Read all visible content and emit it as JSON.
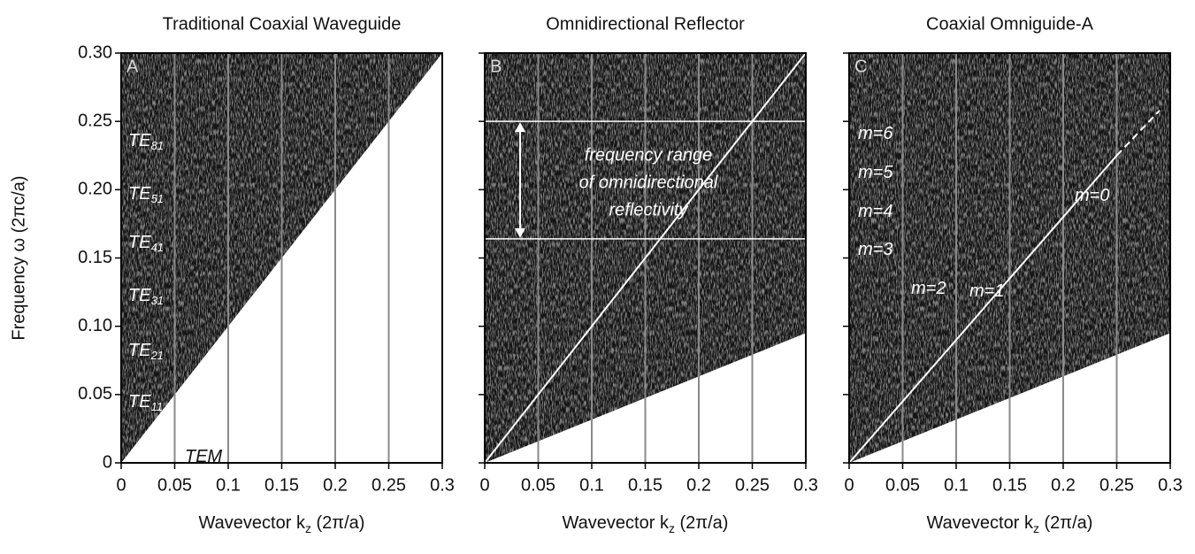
{
  "chart_data": [
    {
      "type": "band",
      "panel": "A",
      "title": "Traditional Coaxial Waveguide",
      "ylabel": "Frequency ω  (2πc/a)",
      "xlabel": {
        "text": "Wavevector k",
        "sub": "z",
        "unit": "(2π/a)"
      },
      "xlim": [
        0,
        0.3
      ],
      "ylim": [
        0,
        0.3
      ],
      "xticks": [
        0,
        0.05,
        0.1,
        0.15,
        0.2,
        0.25,
        0.3
      ],
      "yticks": [
        0,
        0.05,
        {
          "value": 0.1,
          "label": "0.10"
        },
        0.15,
        {
          "value": 0.2,
          "label": "0.20"
        },
        0.25,
        {
          "value": 0.3,
          "label": "0.30"
        }
      ],
      "grid": true,
      "boundary": {
        "x": [
          0,
          0.3
        ],
        "y": [
          0,
          0.3
        ]
      },
      "lines": [],
      "labels": [
        {
          "text": "TE",
          "sub": "81"
        },
        {
          "text": "TE",
          "sub": "51"
        },
        {
          "text": "TE",
          "sub": "41"
        },
        {
          "text": "TE",
          "sub": "31"
        },
        {
          "text": "TE",
          "sub": "21"
        },
        {
          "text": "TE",
          "sub": "11"
        },
        {
          "text": "TEM"
        }
      ]
    },
    {
      "type": "band",
      "panel": "B",
      "title": "Omnidirectional Reflector",
      "xlabel": {
        "text": "Wavevector k",
        "sub": "z",
        "unit": "(2π/a)"
      },
      "xlim": [
        0,
        0.3
      ],
      "ylim": [
        0,
        0.3
      ],
      "xticks": [
        0,
        0.05,
        0.1,
        0.15,
        0.2,
        0.25,
        0.3
      ],
      "grid": true,
      "boundary": {
        "x": [
          0,
          0.3
        ],
        "y": [
          0,
          0.095
        ]
      },
      "lines": [
        {
          "x": [
            0,
            0.3
          ],
          "y": [
            0,
            0.3
          ]
        }
      ],
      "gap": [
        0.164,
        0.25
      ],
      "gap_text": [
        "frequency range",
        "of omnidirectional",
        "reflectivity"
      ]
    },
    {
      "type": "band",
      "panel": "C",
      "title": "Coaxial Omniguide-A",
      "xlabel": {
        "text": "Wavevector k",
        "sub": "z",
        "unit": "(2π/a)"
      },
      "xlim": [
        0,
        0.3
      ],
      "ylim": [
        0,
        0.3
      ],
      "xticks": [
        0,
        0.05,
        0.1,
        0.15,
        0.2,
        0.25,
        0.3
      ],
      "grid": true,
      "boundary": {
        "x": [
          0,
          0.3
        ],
        "y": [
          0,
          0.095
        ]
      },
      "lines": [
        {
          "x": [
            0,
            0.25
          ],
          "y": [
            0,
            0.225
          ]
        },
        {
          "x": [
            0.25,
            0.29
          ],
          "y": [
            0.225,
            0.258
          ],
          "dashed": true
        }
      ],
      "labels": [
        {
          "text": "m=6"
        },
        {
          "text": "m=5"
        },
        {
          "text": "m=4"
        },
        {
          "text": "m=3"
        },
        {
          "text": "m=2"
        },
        {
          "text": "m=1"
        },
        {
          "text": "m=0"
        }
      ]
    }
  ]
}
